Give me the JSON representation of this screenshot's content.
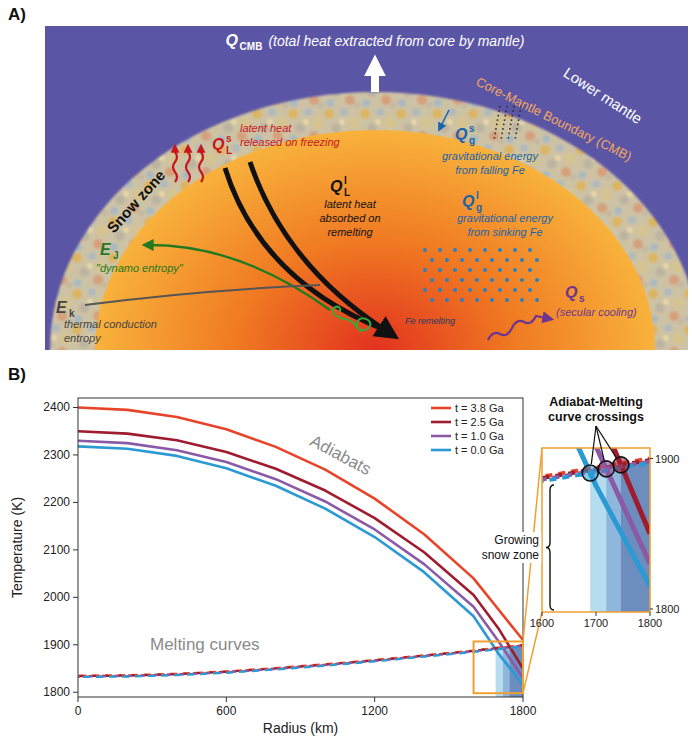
{
  "diagram": {
    "panel_label": "A)",
    "heat_flux": {
      "symbol": "Q",
      "subscript": "CMB",
      "text": "(total heat extracted from core by mantle)"
    },
    "lower_mantle": "Lower mantle",
    "boundary": "Core-Mantle Boundary (CMB)",
    "snow_zone": "Snow zone",
    "fe_label": "Fe remelting",
    "terms": [
      {
        "symbol": "Q",
        "superscript": "s",
        "subscript": "L",
        "lines": [
          "latent heat",
          "released on freezing"
        ],
        "color": "#c8161e"
      },
      {
        "symbol": "Q",
        "superscript": "s",
        "subscript": "g",
        "lines": [
          "gravitational energy",
          "from falling Fe"
        ],
        "color": "#1a64a8"
      },
      {
        "symbol": "Q",
        "superscript": "l",
        "subscript": "L",
        "lines": [
          "latent heat",
          "absorbed on",
          "remelting"
        ],
        "color": "#111111"
      },
      {
        "symbol": "Q",
        "superscript": "l",
        "subscript": "g",
        "lines": [
          "gravitational energy",
          "from sinking Fe"
        ],
        "color": "#1a64a8"
      },
      {
        "symbol": "Q",
        "subscript": "s",
        "lines": [
          "(secular cooling)"
        ],
        "color": "#6e3590"
      },
      {
        "symbol": "E",
        "subscript": "J",
        "lines": [
          "\"dynamo entropy\""
        ],
        "color": "#22791f"
      },
      {
        "symbol": "E",
        "subscript": "k",
        "lines": [
          "thermal conduction",
          "entropy"
        ],
        "color": "#444444"
      }
    ]
  },
  "chart_data": [
    {
      "type": "line",
      "panel_label": "B)",
      "x_label": "Radius (km)",
      "y_label": "Temperature (K)",
      "x": [
        0,
        200,
        400,
        600,
        800,
        1000,
        1200,
        1400,
        1600,
        1700,
        1800
      ],
      "series": [
        {
          "name": "t = 3.8 Ga",
          "color": "#e8442a",
          "line_style": "solid",
          "values": [
            2400,
            2395,
            2380,
            2354,
            2317,
            2269,
            2208,
            2133,
            2040,
            1975,
            1910
          ]
        },
        {
          "name": "t = 2.5 Ga",
          "color": "#9e1c2e",
          "line_style": "solid",
          "values": [
            2350,
            2345,
            2331,
            2306,
            2271,
            2225,
            2167,
            2095,
            2005,
            1935,
            1850
          ]
        },
        {
          "name": "t = 1.0 Ga",
          "color": "#8b5aa6",
          "line_style": "solid",
          "values": [
            2330,
            2325,
            2310,
            2285,
            2249,
            2202,
            2143,
            2070,
            1980,
            1908,
            1830
          ]
        },
        {
          "name": "t = 0.0 Ga",
          "color": "#2a9ad4",
          "line_style": "solid",
          "values": [
            2318,
            2313,
            2298,
            2272,
            2235,
            2187,
            2127,
            2053,
            1960,
            1882,
            1815
          ]
        },
        {
          "color": "#e8442a",
          "line_style": "dashed",
          "values": [
            1835,
            1836,
            1839,
            1844,
            1851,
            1859,
            1868,
            1878,
            1888,
            1894,
            1900
          ]
        },
        {
          "color": "#9e1c2e",
          "line_style": "dashed",
          "values": [
            1834,
            1835,
            1838,
            1843,
            1850,
            1858,
            1867,
            1877,
            1887,
            1893,
            1899
          ]
        },
        {
          "color": "#8b5aa6",
          "line_style": "dashed",
          "values": [
            1833,
            1834,
            1837,
            1842,
            1849,
            1857,
            1866,
            1876,
            1886,
            1892,
            1898
          ]
        },
        {
          "color": "#2a9ad4",
          "line_style": "dashed",
          "values": [
            1832,
            1833,
            1836,
            1841,
            1848,
            1856,
            1865,
            1875,
            1885,
            1891,
            1897
          ]
        }
      ],
      "xlim": [
        0,
        1800
      ],
      "ylim": [
        1790,
        2420
      ],
      "xticks": [
        0,
        600,
        1200,
        1800
      ],
      "yticks": [
        1800,
        1900,
        2000,
        2100,
        2200,
        2300,
        2400
      ],
      "legend": "upper right",
      "annotations": [
        "Adiabats",
        "Melting curves"
      ]
    },
    {
      "type": "line",
      "title": "Adiabat-Melting curve crossings",
      "xlim": [
        1600,
        1800
      ],
      "ylim": [
        1798,
        1907
      ],
      "xticks": [
        1600,
        1700,
        1800
      ],
      "yticks": [
        1800,
        1900
      ],
      "snow_zone": {
        "label": "Growing snow zone",
        "colors": [
          "#6d8dbf",
          "#8fb7dc",
          "#b6dcf0"
        ]
      }
    }
  ]
}
